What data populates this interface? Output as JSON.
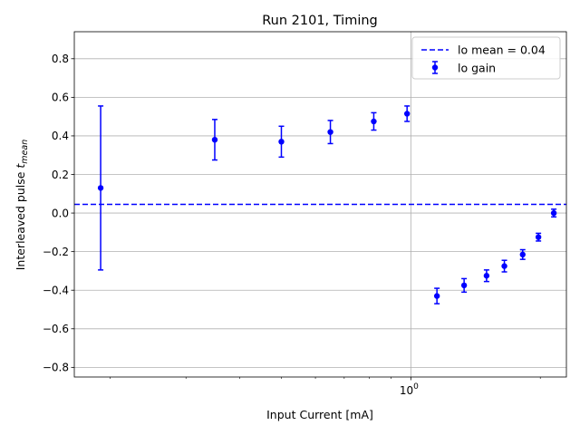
{
  "chart_data": {
    "type": "scatter",
    "title": "Run 2101, Timing",
    "xlabel": "Input Current [mA]",
    "ylabel_main": "Interleaved pulse ",
    "ylabel_sym": "t",
    "ylabel_sub": "mean",
    "x_scale": "log",
    "xlim": [
      0.165,
      2.3
    ],
    "ylim": [
      -0.85,
      0.94
    ],
    "grid": true,
    "legend_position": "top-right",
    "x_major_tick": {
      "label_base": "10",
      "label_exp": "0"
    },
    "y_ticks": [
      0.8,
      0.6,
      0.4,
      0.2,
      0.0,
      -0.2,
      -0.4,
      -0.6,
      -0.8
    ],
    "y_tick_labels": [
      "0.8",
      "0.6",
      "0.4",
      "0.2",
      "0.0",
      "−0.2",
      "−0.4",
      "−0.6",
      "−0.8"
    ],
    "reference_line": {
      "label": "lo mean = 0.04",
      "y": 0.045,
      "color": "#0000ff",
      "style": "dashed"
    },
    "series": [
      {
        "name": "lo gain",
        "color": "#0000ff",
        "marker": "circle",
        "points": [
          {
            "x": 0.19,
            "y": 0.13,
            "err": 0.425
          },
          {
            "x": 0.35,
            "y": 0.38,
            "err": 0.105
          },
          {
            "x": 0.5,
            "y": 0.37,
            "err": 0.08
          },
          {
            "x": 0.65,
            "y": 0.42,
            "err": 0.06
          },
          {
            "x": 0.82,
            "y": 0.475,
            "err": 0.045
          },
          {
            "x": 0.98,
            "y": 0.515,
            "err": 0.04
          },
          {
            "x": 1.15,
            "y": -0.43,
            "err": 0.04
          },
          {
            "x": 1.33,
            "y": -0.375,
            "err": 0.035
          },
          {
            "x": 1.5,
            "y": -0.325,
            "err": 0.03
          },
          {
            "x": 1.65,
            "y": -0.275,
            "err": 0.03
          },
          {
            "x": 1.82,
            "y": -0.215,
            "err": 0.025
          },
          {
            "x": 1.98,
            "y": -0.125,
            "err": 0.02
          },
          {
            "x": 2.15,
            "y": 0.0,
            "err": 0.02
          }
        ]
      }
    ]
  }
}
